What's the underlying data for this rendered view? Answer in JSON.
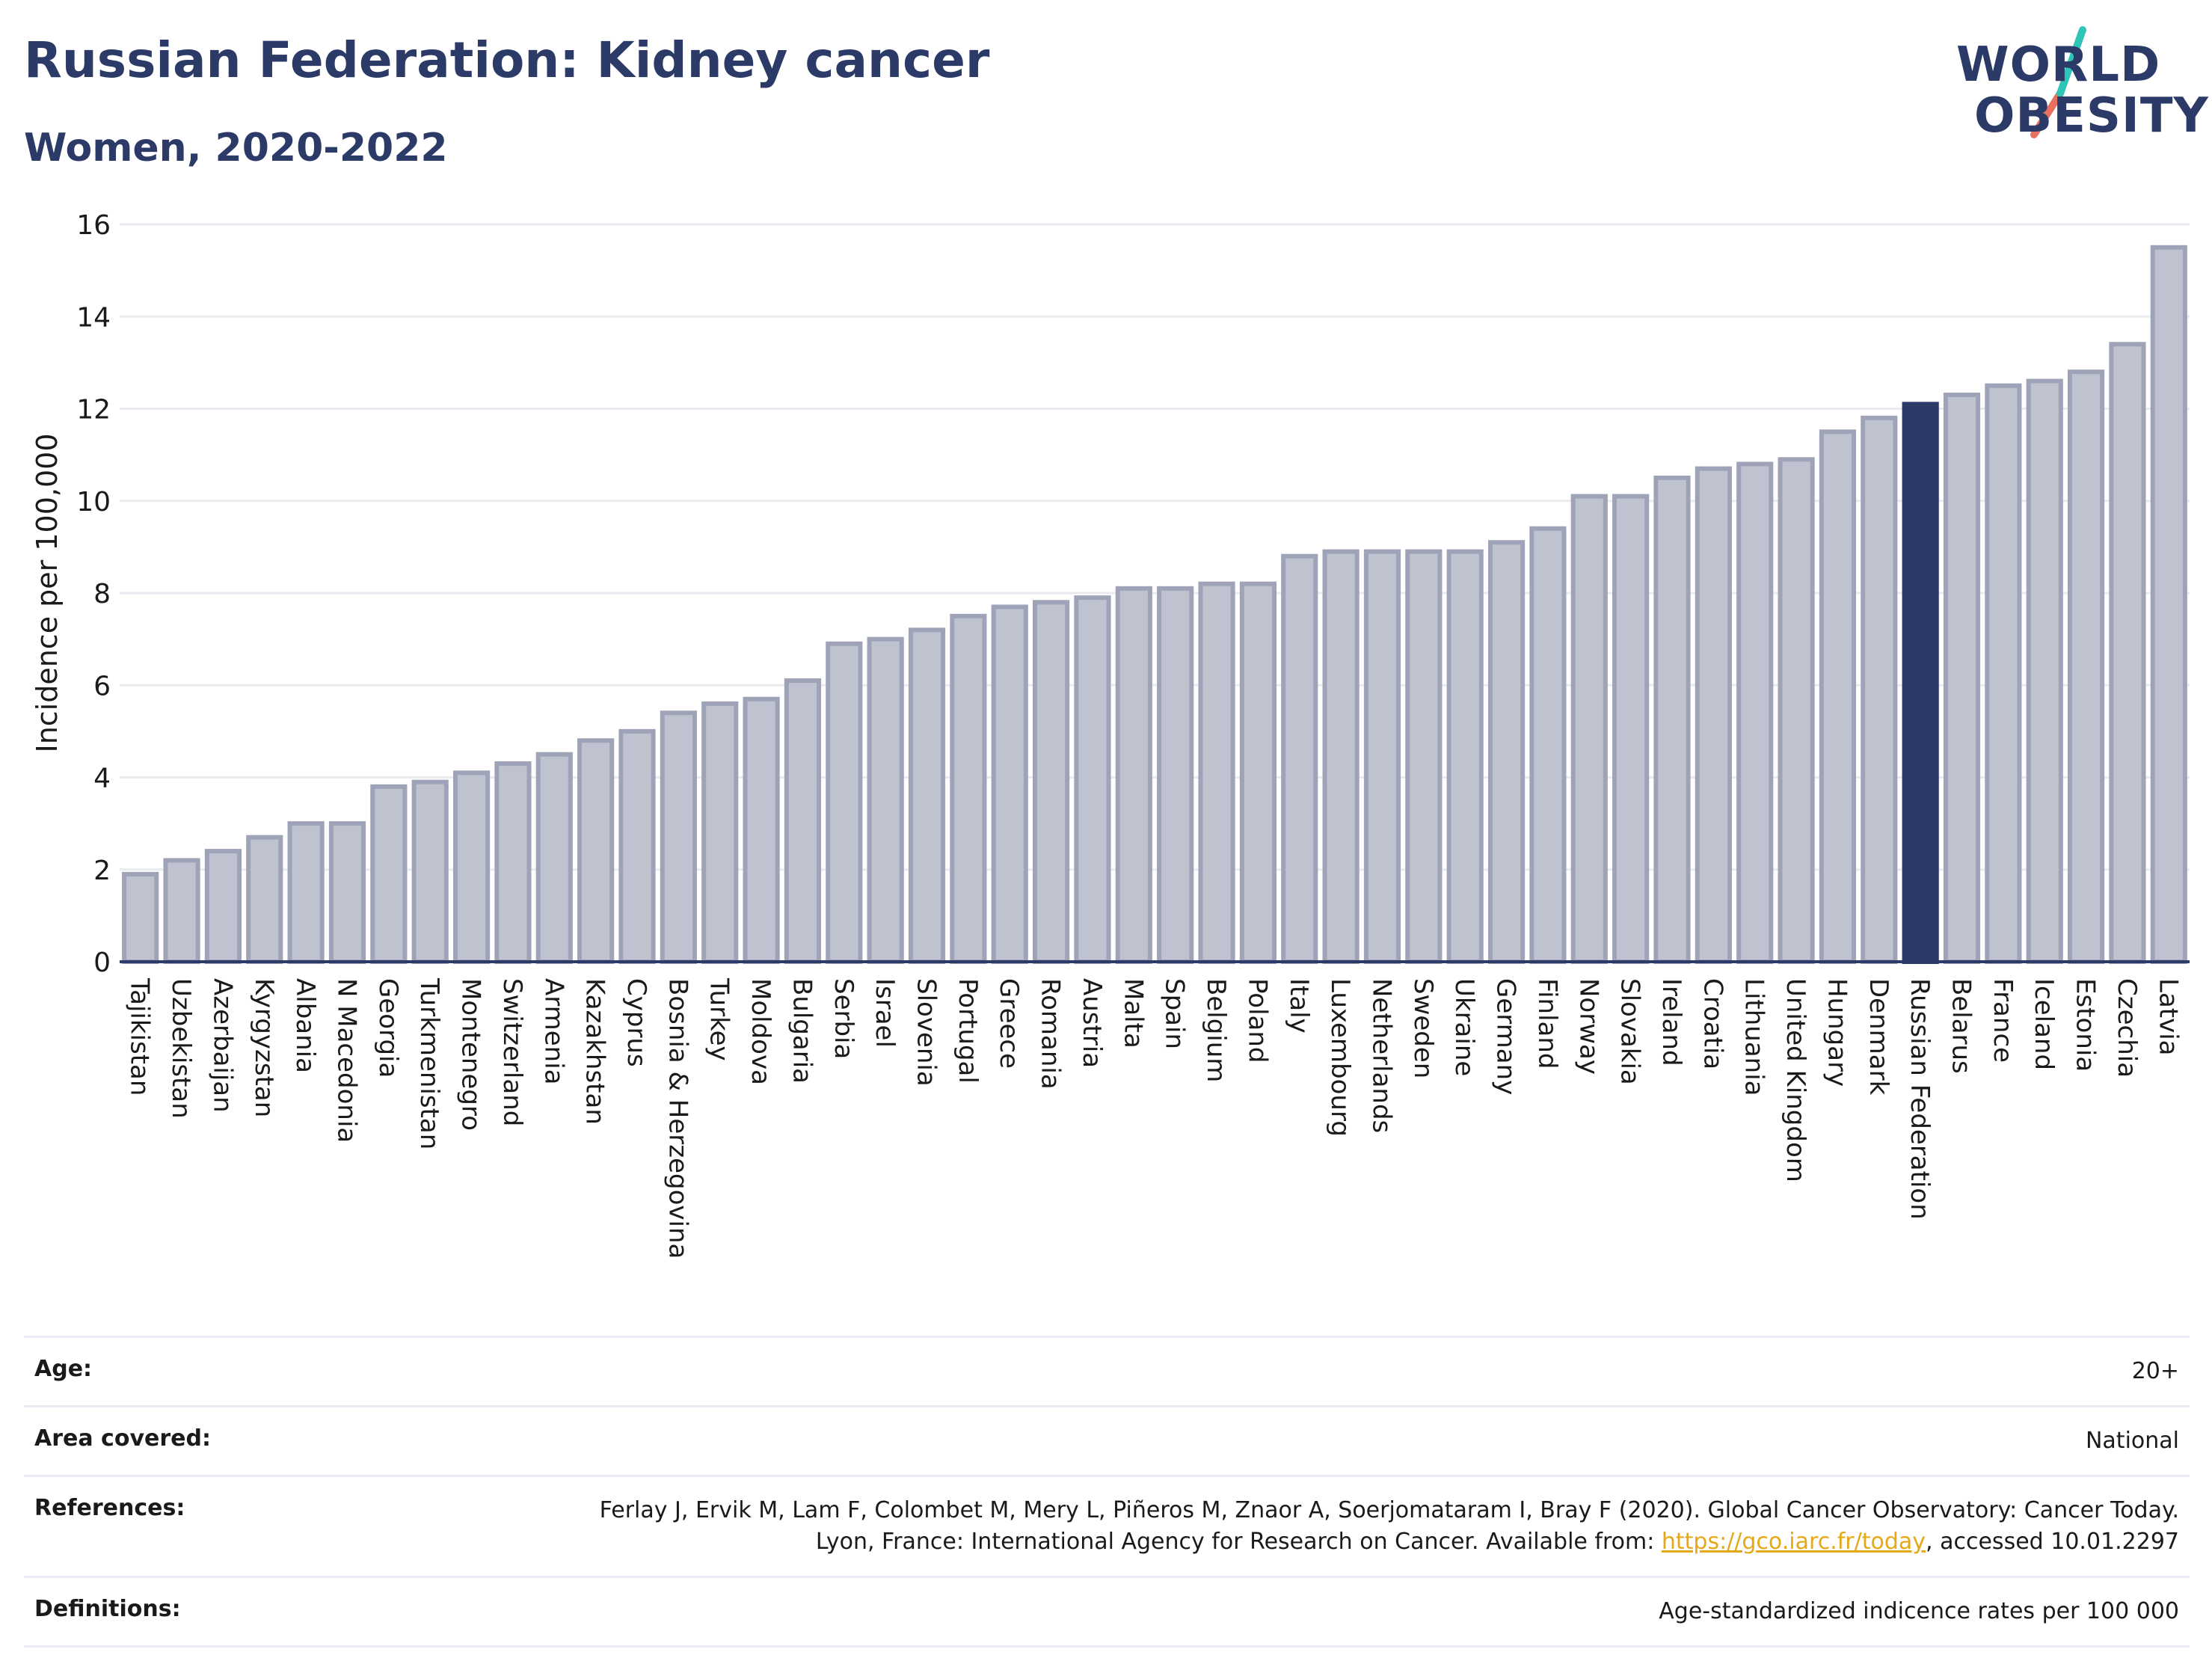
{
  "header": {
    "title": "Russian Federation: Kidney cancer",
    "subtitle": "Women, 2020-2022"
  },
  "logo": {
    "line1": "WORLD",
    "line2": "OBESITY",
    "colors": {
      "text": "#2b3a67",
      "slash_top": "#2ec4b6",
      "slash_bottom": "#e8705f"
    }
  },
  "chart_data": {
    "type": "bar",
    "ylabel": "Incidence per 100,000",
    "ylim": [
      0,
      16
    ],
    "yticks": [
      0,
      2,
      4,
      6,
      8,
      10,
      12,
      14,
      16
    ],
    "grid": true,
    "highlight": "Russian Federation",
    "colors": {
      "bar": "#bfc3d0",
      "bar_edge": "#9ea3b8",
      "highlight": "#2b3a67"
    },
    "categories": [
      "Tajikistan",
      "Uzbekistan",
      "Azerbaijan",
      "Kyrgyzstan",
      "Albania",
      "N Macedonia",
      "Georgia",
      "Turkmenistan",
      "Montenegro",
      "Switzerland",
      "Armenia",
      "Kazakhstan",
      "Cyprus",
      "Bosnia & Herzegovina",
      "Turkey",
      "Moldova",
      "Bulgaria",
      "Serbia",
      "Israel",
      "Slovenia",
      "Portugal",
      "Greece",
      "Romania",
      "Austria",
      "Malta",
      "Spain",
      "Belgium",
      "Poland",
      "Italy",
      "Luxembourg",
      "Netherlands",
      "Sweden",
      "Ukraine",
      "Germany",
      "Finland",
      "Norway",
      "Slovakia",
      "Ireland",
      "Croatia",
      "Lithuania",
      "United Kingdom",
      "Hungary",
      "Denmark",
      "Russian Federation",
      "Belarus",
      "France",
      "Iceland",
      "Estonia",
      "Czechia",
      "Latvia"
    ],
    "values": [
      1.9,
      2.2,
      2.4,
      2.7,
      3.0,
      3.0,
      3.8,
      3.9,
      4.1,
      4.3,
      4.5,
      4.8,
      5.0,
      5.4,
      5.6,
      5.7,
      6.1,
      6.9,
      7.0,
      7.2,
      7.5,
      7.7,
      7.8,
      7.9,
      8.1,
      8.1,
      8.2,
      8.2,
      8.8,
      8.9,
      8.9,
      8.9,
      8.9,
      9.1,
      9.4,
      10.1,
      10.1,
      10.5,
      10.7,
      10.8,
      10.9,
      11.5,
      11.8,
      12.1,
      12.3,
      12.5,
      12.6,
      12.8,
      13.4,
      15.5
    ]
  },
  "meta": {
    "age_label": "Age:",
    "age_value": "20+",
    "area_label": "Area covered:",
    "area_value": "National",
    "ref_label": "References:",
    "ref_text_1": "Ferlay J, Ervik M, Lam F, Colombet M, Mery L, Piñeros M, Znaor A, Soerjomataram I, Bray F (2020). Global Cancer Observatory: Cancer Today. Lyon, France: International Agency for Research on Cancer. Available from: ",
    "ref_link": "https://gco.iarc.fr/today",
    "ref_text_2": ", accessed 10.01.2297",
    "def_label": "Definitions:",
    "def_value": "Age-standardized indicence rates per 100 000"
  }
}
